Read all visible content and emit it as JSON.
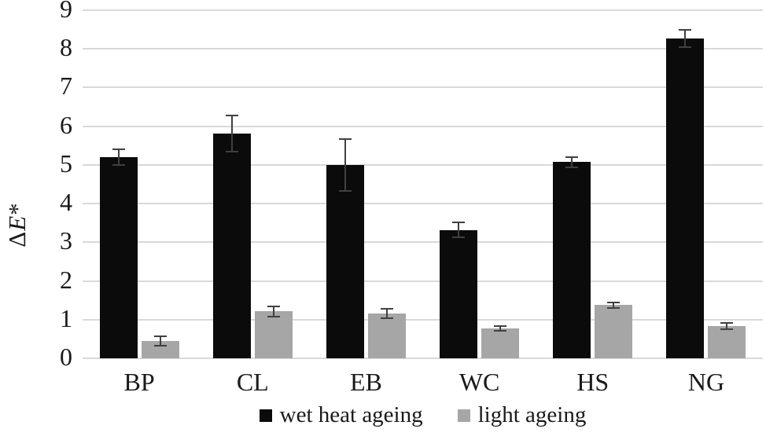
{
  "chart_data": {
    "type": "bar",
    "title": "",
    "xlabel": "",
    "ylabel": "ΔE*",
    "ylim": [
      0,
      9
    ],
    "yticks": [
      0,
      1,
      2,
      3,
      4,
      5,
      6,
      7,
      8,
      9
    ],
    "grid": true,
    "legend_position": "bottom",
    "categories": [
      "BP",
      "CL",
      "EB",
      "WC",
      "HS",
      "NG"
    ],
    "series": [
      {
        "name": "wet heat ageing",
        "color": "#0b0b0b",
        "values": [
          5.2,
          5.81,
          5.0,
          3.32,
          5.07,
          8.27
        ],
        "errors": [
          0.22,
          0.48,
          0.69,
          0.21,
          0.15,
          0.25
        ]
      },
      {
        "name": "light ageing",
        "color": "#a6a6a6",
        "values": [
          0.45,
          1.21,
          1.16,
          0.78,
          1.38,
          0.83
        ],
        "errors": [
          0.14,
          0.16,
          0.15,
          0.08,
          0.09,
          0.1
        ]
      }
    ],
    "colors": {
      "gridline": "#d9d9d9",
      "error_bar": "#404040",
      "text": "#1a1a1a",
      "background": "#ffffff"
    }
  }
}
